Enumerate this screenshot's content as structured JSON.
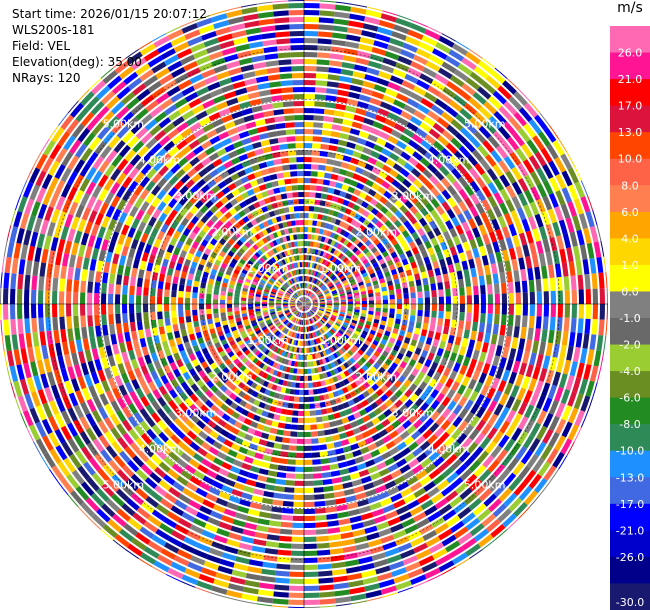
{
  "info": {
    "start_time": "Start time: 2026/01/15 20:07:12",
    "instrument": "WLS200s-181",
    "field": "Field: VEL",
    "elevation": "Elevation(deg): 35.00",
    "nrays": "NRays: 120"
  },
  "chart_data": {
    "type": "heatmap",
    "projection": "polar-ppi",
    "field": "VEL",
    "units": "m/s",
    "n_rays": 120,
    "elevation_deg": 35.0,
    "range_rings_km": [
      1,
      2,
      3,
      4,
      5
    ],
    "ring_labels": [
      "1.00km",
      "2.00km",
      "3.00km",
      "4.00km",
      "5.00km"
    ],
    "color_scale": {
      "units_label": "m/s",
      "ticks": [
        "26.0",
        "21.0",
        "17.0",
        "13.0",
        "10.0",
        "8.0",
        "6.0",
        "4.0",
        "1.0",
        "0.0",
        "-1.0",
        "-2.0",
        "-4.0",
        "-6.0",
        "-8.0",
        "-10.0",
        "-13.0",
        "-17.0",
        "-21.0",
        "-26.0",
        "-30.0"
      ],
      "colors": [
        "#ff69b4",
        "#ff1493",
        "#ff0000",
        "#dc143c",
        "#ff4500",
        "#ff6347",
        "#ff7f50",
        "#ffa500",
        "#ffd700",
        "#ffff00",
        "#808080",
        "#696969",
        "#9acd32",
        "#6b8e23",
        "#228b22",
        "#2e8b57",
        "#1e90ff",
        "#4169e1",
        "#0000ff",
        "#0000cd",
        "#00008b",
        "#191970"
      ]
    }
  }
}
